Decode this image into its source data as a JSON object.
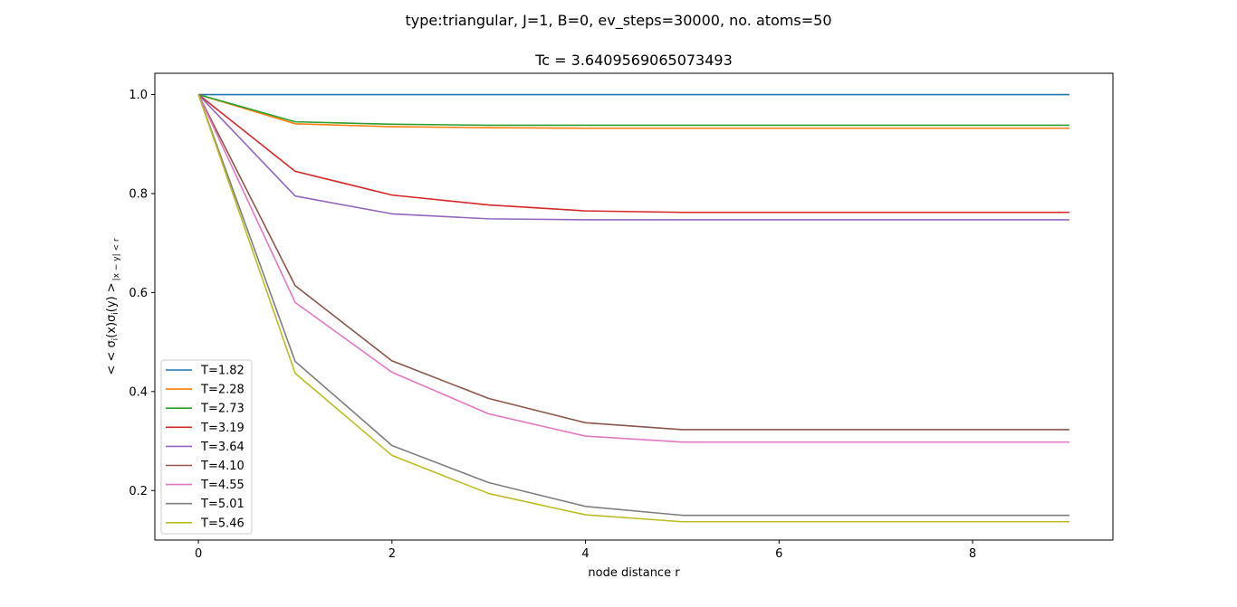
{
  "chart_data": {
    "type": "line",
    "suptitle": "type:triangular, J=1, B=0, ev_steps=30000, no. atoms=50",
    "title": "Tc = 3.6409569065073493",
    "xlabel": "node distance r",
    "ylabel_parts": {
      "main": "< < σ",
      "sub_i": "i",
      "mid": "(x)σ",
      "sub_j": "i",
      "end": "(y) >",
      "sub_tail": "|x − y| < r"
    },
    "xlim": [
      -0.45,
      9.45
    ],
    "ylim": [
      0.1,
      1.043
    ],
    "xticks": [
      0,
      2,
      4,
      6,
      8
    ],
    "yticks": [
      0.2,
      0.4,
      0.6,
      0.8,
      1.0
    ],
    "xtick_labels": [
      "0",
      "2",
      "4",
      "6",
      "8"
    ],
    "ytick_labels": [
      "0.2",
      "0.4",
      "0.6",
      "0.8",
      "1.0"
    ],
    "grid": false,
    "legend_position": "lower-left",
    "x": [
      0,
      1,
      2,
      3,
      4,
      5,
      6,
      7,
      8,
      9
    ],
    "series": [
      {
        "name": "T=1.82",
        "color": "#1f77b4",
        "values": [
          1.0,
          1.0,
          1.0,
          1.0,
          1.0,
          1.0,
          1.0,
          1.0,
          1.0,
          1.0
        ]
      },
      {
        "name": "T=2.28",
        "color": "#ff7f0e",
        "values": [
          1.0,
          0.941,
          0.935,
          0.933,
          0.932,
          0.932,
          0.932,
          0.932,
          0.932,
          0.932
        ]
      },
      {
        "name": "T=2.73",
        "color": "#2ca02c",
        "values": [
          1.0,
          0.945,
          0.94,
          0.938,
          0.938,
          0.938,
          0.938,
          0.938,
          0.938,
          0.938
        ]
      },
      {
        "name": "T=3.19",
        "color": "#d62728",
        "values": [
          1.0,
          0.845,
          0.797,
          0.777,
          0.765,
          0.762,
          0.762,
          0.762,
          0.762,
          0.762
        ]
      },
      {
        "name": "T=3.64",
        "color": "#9467bd",
        "values": [
          1.0,
          0.795,
          0.759,
          0.749,
          0.747,
          0.747,
          0.747,
          0.747,
          0.747,
          0.747
        ]
      },
      {
        "name": "T=4.10",
        "color": "#8c564b",
        "values": [
          1.0,
          0.614,
          0.462,
          0.386,
          0.337,
          0.323,
          0.323,
          0.323,
          0.323,
          0.323
        ]
      },
      {
        "name": "T=4.55",
        "color": "#e377c2",
        "values": [
          1.0,
          0.58,
          0.439,
          0.355,
          0.31,
          0.298,
          0.298,
          0.298,
          0.298,
          0.298
        ]
      },
      {
        "name": "T=5.01",
        "color": "#7f7f7f",
        "values": [
          1.0,
          0.461,
          0.291,
          0.216,
          0.168,
          0.15,
          0.15,
          0.15,
          0.15,
          0.15
        ]
      },
      {
        "name": "T=5.46",
        "color": "#bcbd22",
        "values": [
          1.0,
          0.437,
          0.271,
          0.194,
          0.151,
          0.137,
          0.137,
          0.137,
          0.137,
          0.137
        ]
      }
    ]
  }
}
